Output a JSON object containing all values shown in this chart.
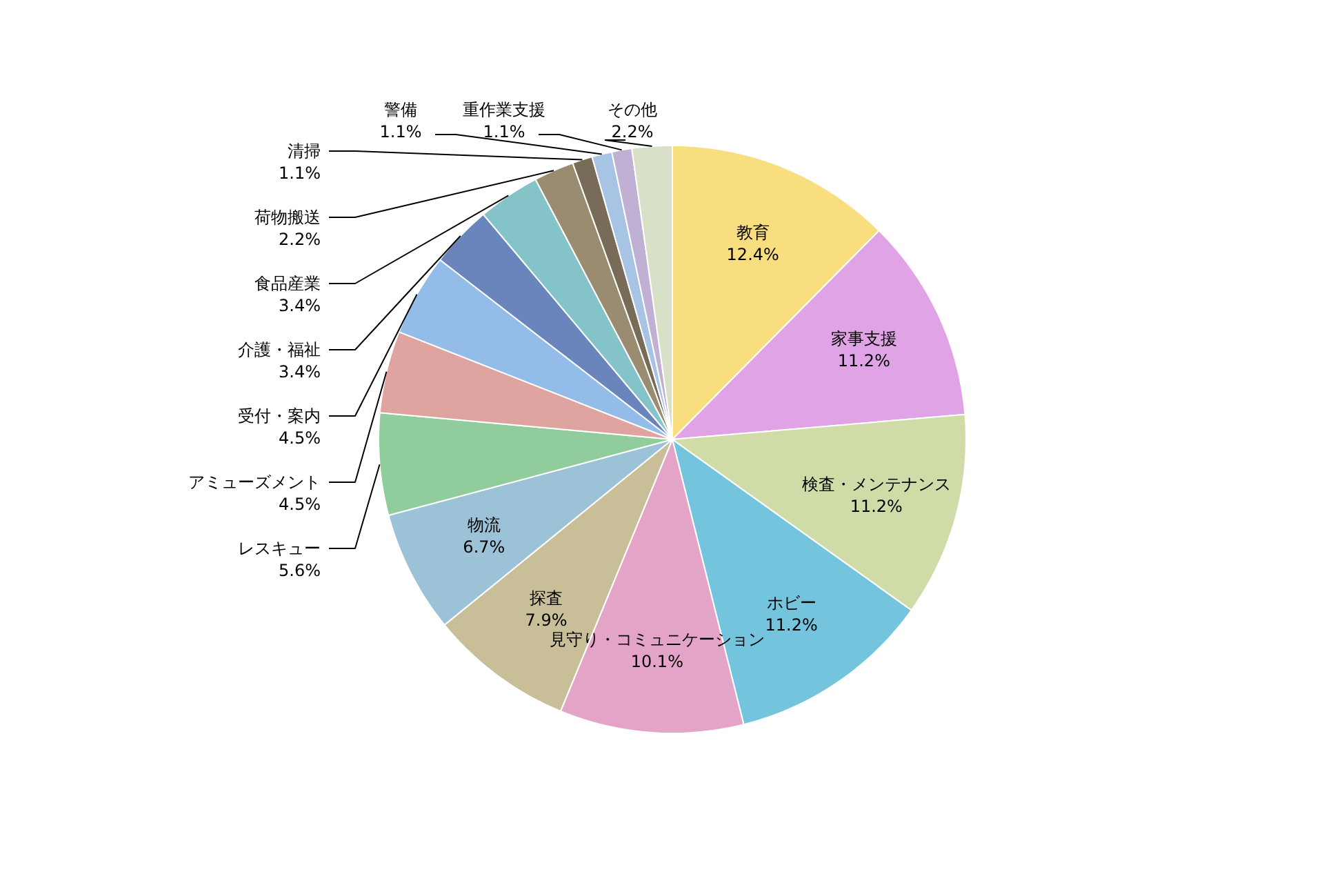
{
  "chart_data": {
    "type": "pie",
    "categories": [
      "教育",
      "家事支援",
      "検査・メンテナンス",
      "ホビー",
      "見守り・コミュニケーション",
      "探査",
      "物流",
      "レスキュー",
      "アミューズメント",
      "受付・案内",
      "介護・福祉",
      "食品産業",
      "荷物搬送",
      "清掃",
      "警備",
      "重作業支援",
      "その他"
    ],
    "values": [
      12.4,
      11.2,
      11.2,
      11.2,
      10.1,
      7.9,
      6.7,
      5.6,
      4.5,
      4.5,
      3.4,
      3.4,
      2.2,
      1.1,
      1.1,
      1.1,
      2.2
    ],
    "value_labels": [
      "12.4%",
      "11.2%",
      "11.2%",
      "11.2%",
      "10.1%",
      "7.9%",
      "6.7%",
      "5.6%",
      "4.5%",
      "4.5%",
      "3.4%",
      "3.4%",
      "2.2%",
      "1.1%",
      "1.1%",
      "1.1%",
      "2.2%"
    ],
    "colors": [
      "#f8de7e",
      "#e0a3e6",
      "#d0dca8",
      "#74c4de",
      "#e4a4c8",
      "#c8bf98",
      "#9cc2d8",
      "#90cc9c",
      "#e0a4a0",
      "#94bce8",
      "#6a84bc",
      "#84c4c8",
      "#9a8c70",
      "#786c58",
      "#a8c4e4",
      "#c0b0d4",
      "#d8e0c8"
    ]
  }
}
